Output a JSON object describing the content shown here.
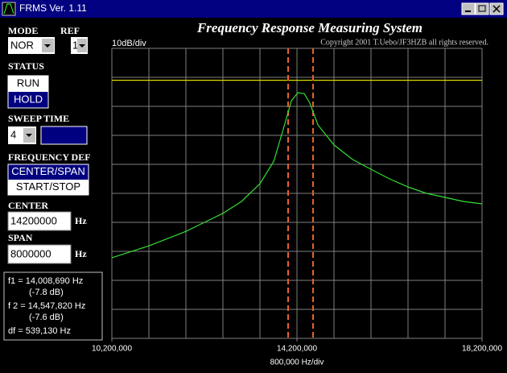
{
  "window": {
    "title": "FRMS Ver. 1.11"
  },
  "controls": {
    "mode_label": "MODE",
    "mode": "NOR",
    "ref_label": "REF",
    "ref": "1",
    "status_label": "STATUS",
    "status_options": [
      "RUN",
      "HOLD"
    ],
    "status_selected": 1,
    "sweep_label": "SWEEP TIME",
    "sweep": "4",
    "freq_def_label": "FREQUENCY DEF",
    "freq_def_options": [
      "CENTER/SPAN",
      "START/STOP"
    ],
    "freq_def_selected": 0,
    "center_label": "CENTER",
    "center": "14200000",
    "span_label": "SPAN",
    "span": "8000000",
    "unit": "Hz"
  },
  "markers": [
    {
      "label": "f1 = 14,008,690 Hz",
      "level": "(-7.8 dB)",
      "value": 14008690
    },
    {
      "label": "f 2 = 14,547,820 Hz",
      "level": "(-7.6 dB)",
      "value": 14547820
    }
  ],
  "marker_color": "#e8602c",
  "df": "df = 539,130 Hz",
  "chart_data": {
    "type": "line",
    "title": "Frequency Response Measuring System",
    "subtitle": "Copyright 2001 T.Uebo/JF3HZB all rights reserved.",
    "y_label": "10dB/div",
    "x_label": "800,000 Hz/div",
    "x": [
      10200000,
      11000000,
      11800000,
      12600000,
      13000000,
      13400000,
      13700000,
      13957000,
      14078000,
      14217000,
      14357000,
      14478000,
      14652000,
      15000000,
      15400000,
      15800000,
      16200000,
      16600000,
      17000000,
      17400000,
      17800000,
      18200000
    ],
    "values": [
      -72.2,
      -68.1,
      -63.1,
      -56.9,
      -52.8,
      -46.7,
      -38.9,
      -25,
      -18.1,
      -15.3,
      -15.6,
      -18.9,
      -26.4,
      -33.3,
      -38.3,
      -41.7,
      -45,
      -47.8,
      -50,
      -51.4,
      -52.8,
      -53.6
    ],
    "color": "#33dd33",
    "reference": {
      "value": -11,
      "color": "#dddd00"
    },
    "xlim": [
      10200000,
      18200000
    ],
    "xticks": [
      {
        "value": 10200000,
        "label": "10,200,000"
      },
      {
        "value": 14200000,
        "label": "14,200,000"
      },
      {
        "value": 18200000,
        "label": "18,200,000"
      }
    ],
    "xgrid": [
      10200000,
      11000000,
      11800000,
      12600000,
      13400000,
      14200000,
      15000000,
      15800000,
      16600000,
      17400000,
      18200000
    ],
    "ylim": [
      -100,
      0
    ],
    "yticks": [
      -100,
      -90,
      -80,
      -70,
      -60,
      -50,
      -40,
      -30,
      -20,
      -10,
      0
    ],
    "grid": true
  }
}
